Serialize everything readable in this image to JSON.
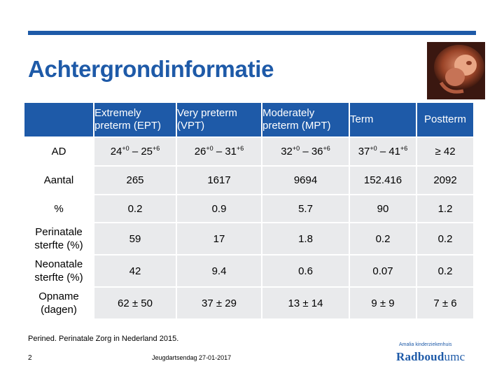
{
  "slide": {
    "title": "Achtergrondinformatie",
    "footnote": "Perined. Perinatale Zorg in Nederland 2015.",
    "page_number": "2",
    "event": "Jeugdartsendag  27-01-2017",
    "hospital_line": "Amalia kinderziekenhuis",
    "brand_bold": "Radboud",
    "brand_light": "umc",
    "photo_icon": "fetus-photo",
    "accent_color": "#1e5aa8"
  },
  "table": {
    "headers": {
      "ept": "Extremely preterm (EPT)",
      "vpt": "Very preterm (VPT)",
      "mpt": "Moderately preterm (MPT)",
      "term": "Term",
      "postterm": "Postterm"
    },
    "ad": {
      "label": "AD",
      "ept": "24+0 – 25+6",
      "vpt": "26+0 – 31+6",
      "mpt": "32+0 – 36+6",
      "term": "37+0 – 41+6",
      "postterm": "≥ 42"
    },
    "rows": [
      {
        "label": "Aantal",
        "values": [
          "265",
          "1617",
          "9694",
          "152.416",
          "2092"
        ]
      },
      {
        "label": "%",
        "values": [
          "0.2",
          "0.9",
          "5.7",
          "90",
          "1.2"
        ]
      },
      {
        "label": "Perinatale sterfte (%)",
        "values": [
          "59",
          "17",
          "1.8",
          "0.2",
          "0.2"
        ]
      },
      {
        "label": "Neonatale sterfte (%)",
        "values": [
          "42",
          "9.4",
          "0.6",
          "0.07",
          "0.2"
        ]
      },
      {
        "label": "Opname (dagen)",
        "values": [
          "62 ± 50",
          "37 ± 29",
          "13 ± 14",
          "9 ± 9",
          "7 ± 6"
        ]
      }
    ]
  }
}
